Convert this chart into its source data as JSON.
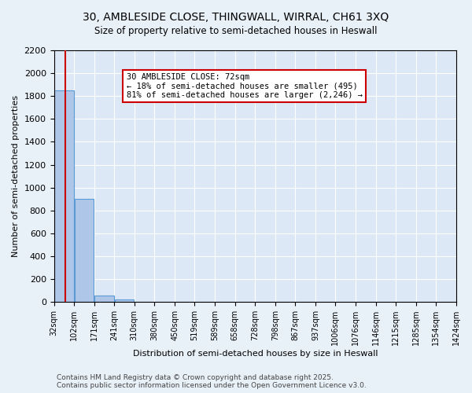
{
  "title": "30, AMBLESIDE CLOSE, THINGWALL, WIRRAL, CH61 3XQ",
  "subtitle": "Size of property relative to semi-detached houses in Heswall",
  "xlabel": "Distribution of semi-detached houses by size in Heswall",
  "ylabel": "Number of semi-detached properties",
  "property_size": 72,
  "property_label": "30 AMBLESIDE CLOSE: 72sqm",
  "annotation_line1": "← 18% of semi-detached houses are smaller (495)",
  "annotation_line2": "81% of semi-detached houses are larger (2,246) →",
  "bin_labels": [
    "32sqm",
    "102sqm",
    "171sqm",
    "241sqm",
    "310sqm",
    "380sqm",
    "450sqm",
    "519sqm",
    "589sqm",
    "658sqm",
    "728sqm",
    "798sqm",
    "867sqm",
    "937sqm",
    "1006sqm",
    "1076sqm",
    "1146sqm",
    "1215sqm",
    "1285sqm",
    "1354sqm",
    "1424sqm"
  ],
  "bin_edges": [
    32,
    102,
    171,
    241,
    310,
    380,
    450,
    519,
    589,
    658,
    728,
    798,
    867,
    937,
    1006,
    1076,
    1146,
    1215,
    1285,
    1354,
    1424
  ],
  "counts": [
    1850,
    900,
    55,
    20,
    0,
    0,
    0,
    0,
    0,
    0,
    0,
    0,
    0,
    0,
    0,
    0,
    0,
    0,
    0,
    0
  ],
  "bar_color": "#aec6e8",
  "bar_edge_color": "#5b9bd5",
  "vline_color": "#cc0000",
  "ylim": [
    0,
    2200
  ],
  "yticks": [
    0,
    200,
    400,
    600,
    800,
    1000,
    1200,
    1400,
    1600,
    1800,
    2000,
    2200
  ],
  "background_color": "#e8f0f8",
  "plot_bg_color": "#dce8f5",
  "annotation_box_color": "#ffffff",
  "annotation_box_edge": "#cc0000",
  "footer_line1": "Contains HM Land Registry data © Crown copyright and database right 2025.",
  "footer_line2": "Contains public sector information licensed under the Open Government Licence v3.0."
}
